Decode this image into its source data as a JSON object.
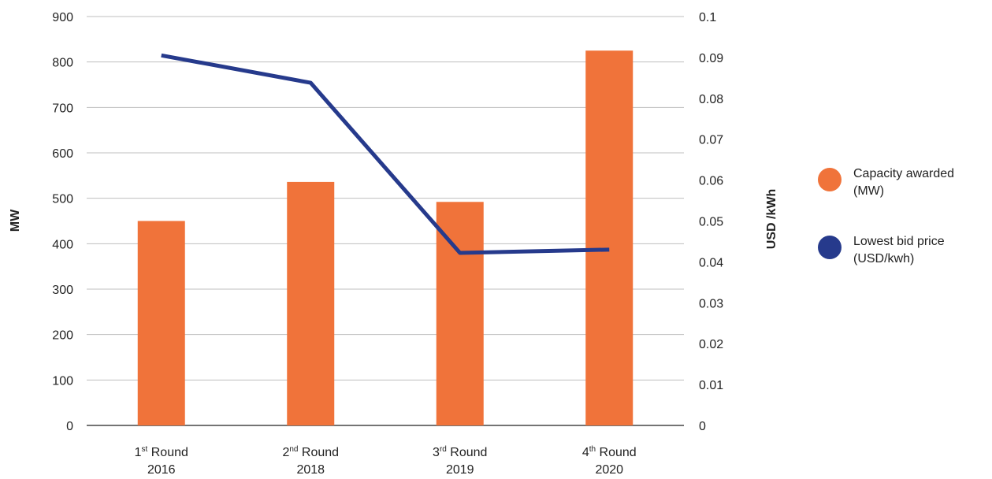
{
  "chart_data": {
    "type": "bar",
    "categories": [
      {
        "ordinal": "1",
        "suffix": "st",
        "word": "Round",
        "year": "2016"
      },
      {
        "ordinal": "2",
        "suffix": "nd",
        "word": "Round",
        "year": "2018"
      },
      {
        "ordinal": "3",
        "suffix": "rd",
        "word": "Round",
        "year": "2019"
      },
      {
        "ordinal": "4",
        "suffix": "th",
        "word": "Round",
        "year": "2020"
      }
    ],
    "series": [
      {
        "name": "Capacity awarded (MW)",
        "legend_lines": [
          "Capacity awarded",
          "(MW)"
        ],
        "type": "bar",
        "axis": "left",
        "color": "#F0733A",
        "values": [
          450,
          536,
          492,
          825
        ]
      },
      {
        "name": "Lowest bid price (USD/kwh)",
        "legend_lines": [
          "Lowest bid price",
          "(USD/kwh)"
        ],
        "type": "line",
        "axis": "right",
        "color": "#263A8C",
        "values": [
          0.0905,
          0.0838,
          0.0422,
          0.043
        ]
      }
    ],
    "y_left": {
      "label": "MW",
      "min": 0,
      "max": 900,
      "step": 100,
      "ticks": [
        "0",
        "100",
        "200",
        "300",
        "400",
        "500",
        "600",
        "700",
        "800",
        "900"
      ]
    },
    "y_right": {
      "label": "USD /kWh",
      "min": 0,
      "max": 0.1,
      "step": 0.01,
      "ticks": [
        "0",
        "0.01",
        "0.02",
        "0.03",
        "0.04",
        "0.05",
        "0.06",
        "0.07",
        "0.08",
        "0.09",
        "0.1"
      ]
    },
    "grid": true,
    "legend": "right"
  }
}
